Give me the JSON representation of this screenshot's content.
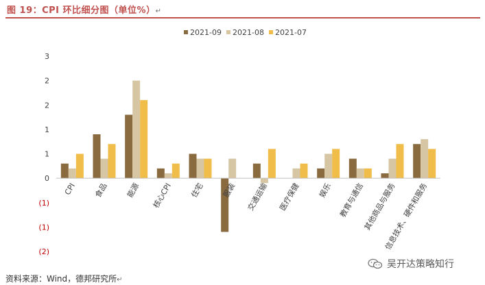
{
  "header": {
    "title": "图 19：CPI 环比细分图（单位%）",
    "return_mark": "↵"
  },
  "footer": {
    "source": "资料来源：Wind，德邦研究所",
    "return_mark": "↵"
  },
  "watermark": {
    "text": "吴开达策略知行",
    "icon": "wechat-icon"
  },
  "colors": {
    "title": "#c0504d",
    "negative_tick": "#c00000",
    "s2021_09": "#8a6a3f",
    "s2021_08": "#d6c6a3",
    "s2021_07": "#f0bd4a"
  },
  "chart_data": {
    "type": "bar",
    "categories": [
      "CPI",
      "食品",
      "能源",
      "核心CPI",
      "住宅",
      "服装",
      "交通运输",
      "医疗保健",
      "娱乐",
      "教育与通信",
      "其他商品与服务",
      "信息技术、硬件和服务"
    ],
    "series": [
      {
        "name": "2021-09",
        "color": "#8a6a3f",
        "values": [
          0.3,
          0.9,
          1.3,
          0.2,
          0.5,
          -1.1,
          0.3,
          0.0,
          0.2,
          0.4,
          0.1,
          0.7
        ]
      },
      {
        "name": "2021-08",
        "color": "#d6c6a3",
        "values": [
          0.2,
          0.4,
          2.0,
          0.1,
          0.4,
          0.4,
          -0.1,
          0.2,
          0.5,
          0.2,
          0.4,
          0.8
        ]
      },
      {
        "name": "2021-07",
        "color": "#f0bd4a",
        "values": [
          0.5,
          0.7,
          1.6,
          0.3,
          0.4,
          0.0,
          0.6,
          0.3,
          0.6,
          0.2,
          0.7,
          0.6
        ]
      }
    ],
    "ylim": [
      -1.5,
      2.5
    ],
    "yticks": [
      {
        "value": 2.5,
        "label": "3"
      },
      {
        "value": 2.0,
        "label": "2"
      },
      {
        "value": 1.5,
        "label": "2"
      },
      {
        "value": 1.0,
        "label": "1"
      },
      {
        "value": 0.5,
        "label": "1"
      },
      {
        "value": 0.0,
        "label": "0"
      },
      {
        "value": -0.5,
        "label": "(1)"
      },
      {
        "value": -1.0,
        "label": "(1)"
      },
      {
        "value": -1.5,
        "label": "(2)"
      }
    ],
    "legend": "top-center",
    "grid": false
  }
}
